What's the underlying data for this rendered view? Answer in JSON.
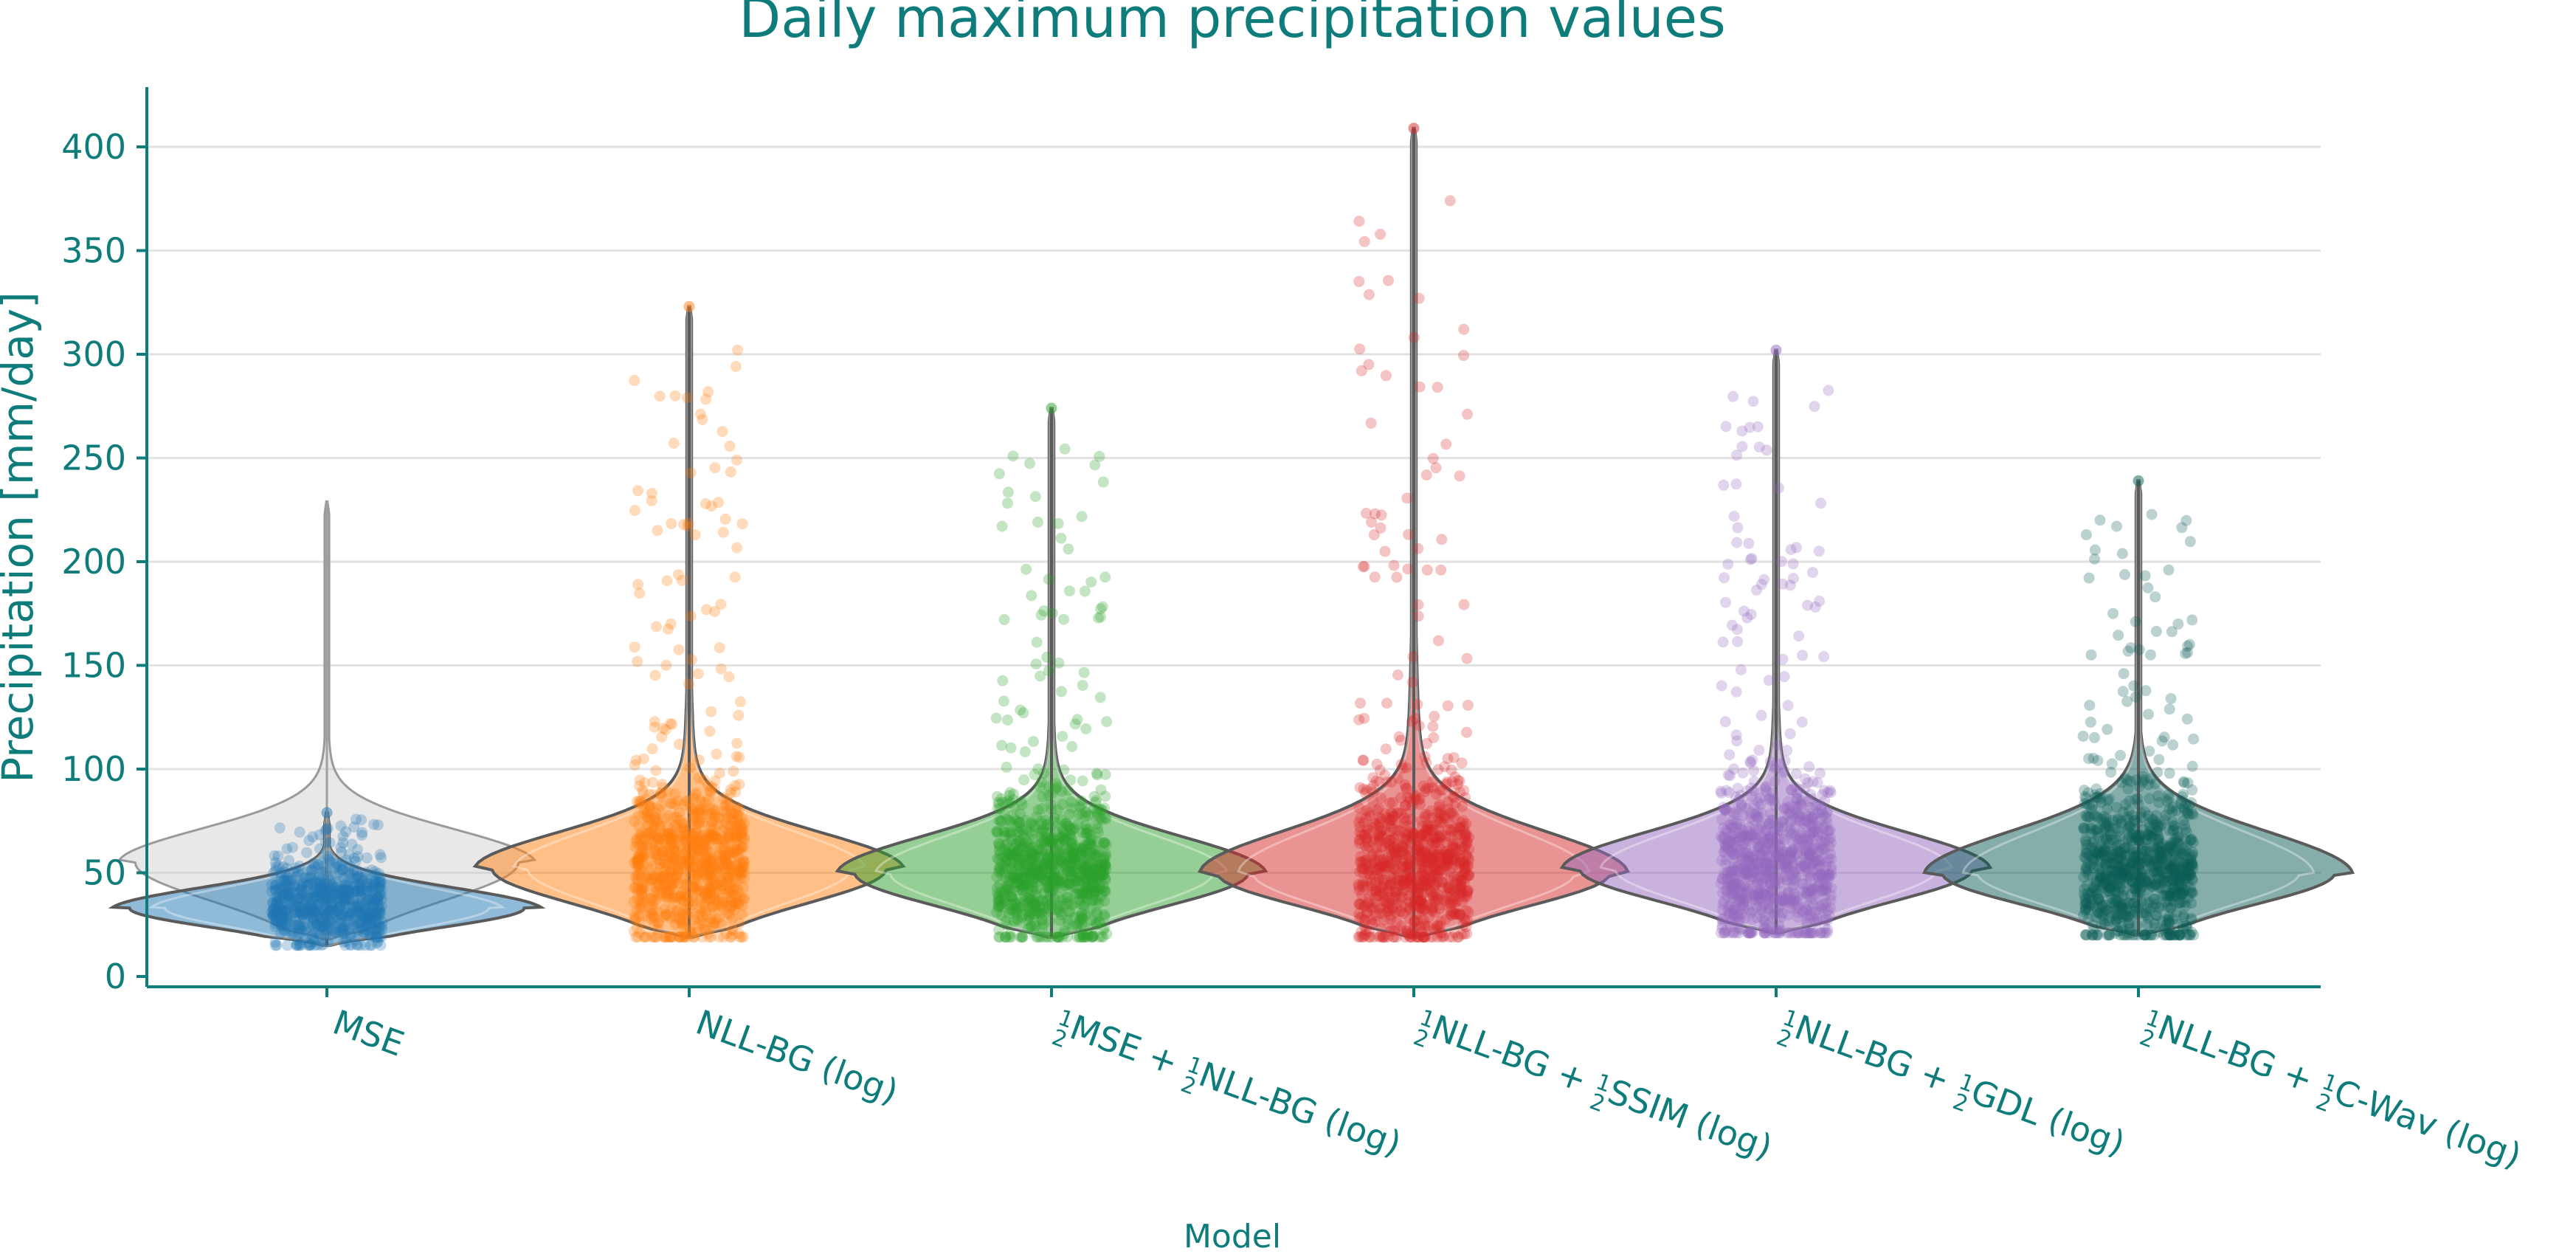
{
  "chart_data": {
    "type": "violin",
    "title": "Daily maximum precipitation values",
    "xlabel": "Model",
    "ylabel": "Precipitation [mm/day]",
    "ylim": [
      -5,
      420
    ],
    "yticks": [
      0,
      50,
      100,
      150,
      200,
      250,
      300,
      350,
      400
    ],
    "grid": "horizontal",
    "background_violin": {
      "color": "#c8c8c8",
      "min": 18,
      "q1": 38,
      "median": 52,
      "q3": 68,
      "max": 229,
      "mode": 55,
      "spread": 0.55
    },
    "categories": [
      {
        "label": "MSE",
        "color": "#1f77b4",
        "min": 15,
        "q1": 28,
        "median": 33,
        "q3": 41,
        "max": 79,
        "mode": 33,
        "spread": 0.6,
        "n_points": 650
      },
      {
        "label": "NLL-BG (log)",
        "color": "#ff7f0e",
        "min": 19,
        "q1": 40,
        "median": 52,
        "q3": 66,
        "max": 323,
        "mode": 52,
        "spread": 0.6,
        "n_points": 900
      },
      {
        "label": "½MSE + ½NLL-BG (log)",
        "color": "#2ca02c",
        "min": 19,
        "q1": 40,
        "median": 50,
        "q3": 64,
        "max": 274,
        "mode": 50,
        "spread": 0.6,
        "n_points": 900
      },
      {
        "label": "½NLL-BG + ½SSIM (log)",
        "color": "#d62728",
        "min": 19,
        "q1": 40,
        "median": 52,
        "q3": 66,
        "max": 409,
        "mode": 50,
        "spread": 0.6,
        "n_points": 900
      },
      {
        "label": "½NLL-BG + ½GDL (log)",
        "color": "#9467bd",
        "min": 21,
        "q1": 40,
        "median": 52,
        "q3": 66,
        "max": 302,
        "mode": 52,
        "spread": 0.6,
        "n_points": 900
      },
      {
        "label": "½NLL-BG + ½C-Wav (log)",
        "color": "#0b5d57",
        "min": 20,
        "q1": 40,
        "median": 52,
        "q3": 66,
        "max": 239,
        "mode": 50,
        "spread": 0.6,
        "n_points": 900
      }
    ]
  },
  "tick_labels": {
    "cat0": "MSE",
    "cat1": "NLL-BG (log)",
    "cat2_a": "MSE + ",
    "cat2_b": "NLL-BG (log)",
    "cat3_a": "NLL-BG + ",
    "cat3_b": "SSIM (log)",
    "cat4_a": "NLL-BG + ",
    "cat4_b": "GDL (log)",
    "cat5_a": "NLL-BG + ",
    "cat5_b": "C-Wav (log)",
    "half_num": "1",
    "half_den": "2"
  }
}
